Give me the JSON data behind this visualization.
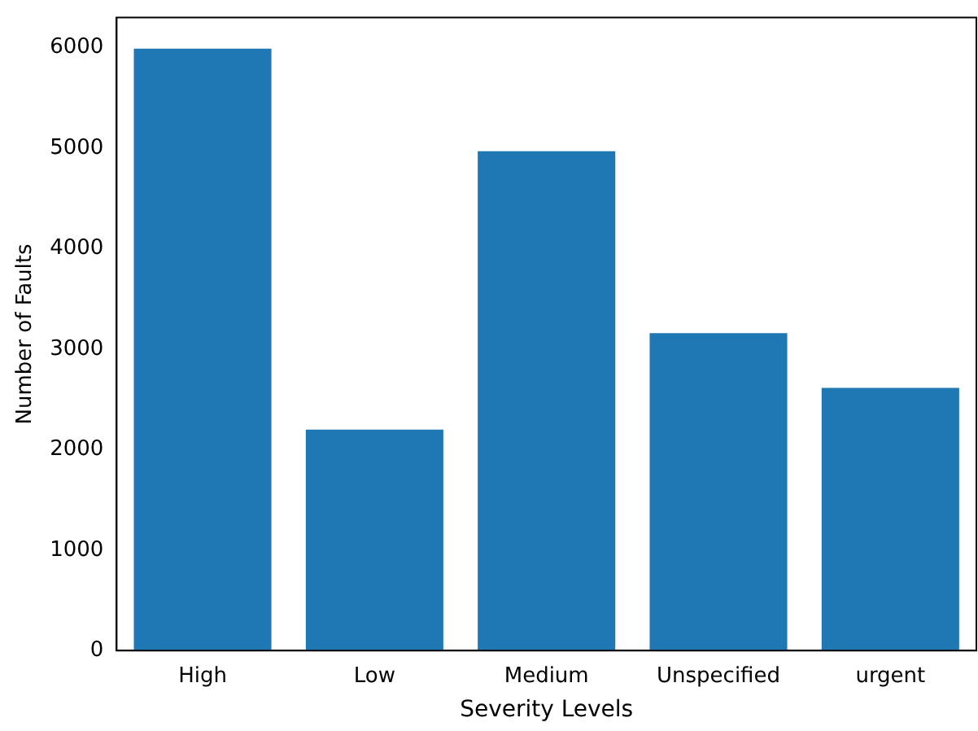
{
  "chart_data": {
    "type": "bar",
    "xlabel": "Severity Levels",
    "ylabel": "Number of Faults",
    "categories": [
      "High",
      "Low",
      "Medium",
      "Unspecified",
      "urgent"
    ],
    "values": [
      5990,
      2200,
      4970,
      3160,
      2615
    ],
    "color": "#1f77b4",
    "ylim": [
      0,
      6300
    ],
    "yticks": [
      0,
      1000,
      2000,
      3000,
      4000,
      5000,
      6000
    ],
    "grid": false,
    "legend": false
  }
}
